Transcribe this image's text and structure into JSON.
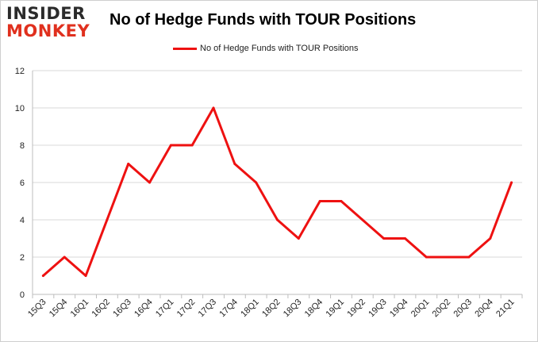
{
  "logo": {
    "line1": "INSIDER",
    "line2": "MONKEY"
  },
  "chart_data": {
    "type": "line",
    "title": "No of Hedge Funds with TOUR Positions",
    "xlabel": "",
    "ylabel": "",
    "categories": [
      "15Q3",
      "15Q4",
      "16Q1",
      "16Q2",
      "16Q3",
      "16Q4",
      "17Q1",
      "17Q2",
      "17Q3",
      "17Q4",
      "18Q1",
      "18Q2",
      "18Q3",
      "18Q4",
      "19Q1",
      "19Q2",
      "19Q3",
      "19Q4",
      "20Q1",
      "20Q2",
      "20Q3",
      "20Q4",
      "21Q1"
    ],
    "series": [
      {
        "name": "No of Hedge Funds with TOUR Positions",
        "values": [
          1,
          2,
          1,
          4,
          7,
          6,
          8,
          8,
          10,
          7,
          6,
          4,
          3,
          5,
          5,
          4,
          3,
          3,
          2,
          2,
          2,
          3,
          6
        ],
        "color": "#ee1111"
      }
    ],
    "ylim": [
      0,
      12
    ],
    "yticks": [
      0,
      2,
      4,
      6,
      8,
      10,
      12
    ],
    "grid": true,
    "legend_position": "top-center"
  }
}
